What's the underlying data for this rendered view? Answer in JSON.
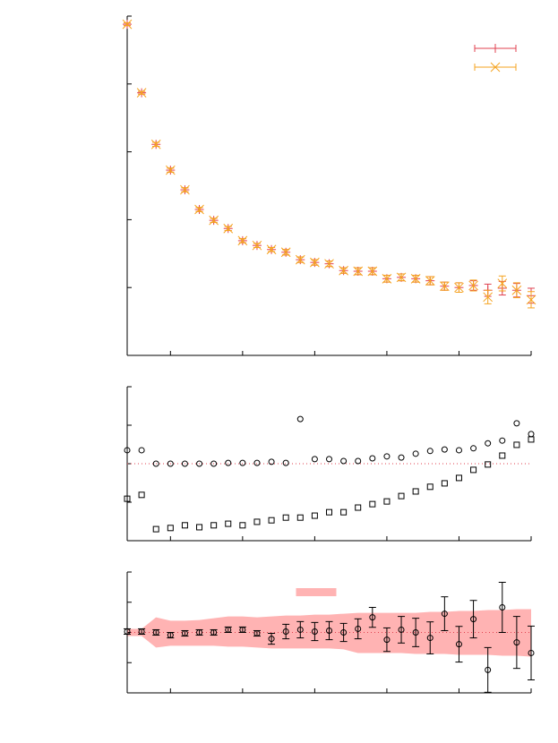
{
  "chart_data": [
    {
      "type": "errorbar",
      "x": [
        2,
        3,
        4,
        5,
        6,
        7,
        8,
        9,
        10,
        11,
        12,
        13,
        14,
        15,
        16,
        17,
        18,
        19,
        20,
        21,
        22,
        23,
        24,
        25,
        26,
        27,
        28,
        29,
        30
      ],
      "xlim": [
        2,
        30
      ],
      "xticks": [
        5,
        10,
        15,
        20,
        25,
        30
      ],
      "ylim": [
        0,
        5
      ],
      "yticks": [
        0,
        1,
        2,
        3,
        4,
        5
      ],
      "legend": "top-right",
      "series": [
        {
          "color": "#e0404f",
          "marker": "plus",
          "values": [
            4.88,
            3.87,
            3.11,
            2.73,
            2.44,
            2.15,
            1.99,
            1.87,
            1.69,
            1.62,
            1.56,
            1.52,
            1.41,
            1.37,
            1.35,
            1.25,
            1.24,
            1.24,
            1.13,
            1.15,
            1.13,
            1.1,
            1.02,
            1.0,
            1.03,
            0.96,
            0.99,
            0.96,
            0.88
          ],
          "errors": [
            0.02,
            0.02,
            0.03,
            0.03,
            0.03,
            0.03,
            0.03,
            0.03,
            0.03,
            0.03,
            0.03,
            0.04,
            0.04,
            0.04,
            0.04,
            0.04,
            0.05,
            0.05,
            0.05,
            0.05,
            0.05,
            0.06,
            0.06,
            0.07,
            0.07,
            0.09,
            0.1,
            0.1,
            0.11
          ]
        },
        {
          "color": "#f5a31f",
          "marker": "cross",
          "values": [
            4.88,
            3.87,
            3.11,
            2.73,
            2.44,
            2.15,
            1.99,
            1.87,
            1.69,
            1.62,
            1.56,
            1.52,
            1.41,
            1.37,
            1.35,
            1.25,
            1.24,
            1.24,
            1.13,
            1.15,
            1.13,
            1.1,
            1.02,
            1.0,
            1.03,
            0.86,
            1.06,
            0.96,
            0.82
          ],
          "errors": [
            0.02,
            0.02,
            0.03,
            0.03,
            0.03,
            0.03,
            0.03,
            0.03,
            0.03,
            0.03,
            0.03,
            0.04,
            0.04,
            0.04,
            0.04,
            0.04,
            0.05,
            0.05,
            0.05,
            0.05,
            0.05,
            0.06,
            0.06,
            0.07,
            0.08,
            0.1,
            0.11,
            0.11,
            0.12
          ]
        }
      ]
    },
    {
      "type": "scatter",
      "x": [
        2,
        3,
        4,
        5,
        6,
        7,
        8,
        9,
        10,
        11,
        12,
        13,
        14,
        15,
        16,
        17,
        18,
        19,
        20,
        21,
        22,
        23,
        24,
        25,
        26,
        27,
        28,
        29,
        30
      ],
      "xlim": [
        2,
        30
      ],
      "xticks": [
        5,
        10,
        15,
        20,
        25,
        30
      ],
      "ylim": [
        -2,
        2
      ],
      "yticks": [
        -2,
        -1,
        0,
        1,
        2
      ],
      "reference_line": 0,
      "reference_color": "#e0404f",
      "series": [
        {
          "color": "#000000",
          "marker": "circle",
          "values": [
            0.35,
            0.35,
            0,
            0,
            0,
            0,
            0,
            0.02,
            0.02,
            0.02,
            0.05,
            0.02,
            1.16,
            0.12,
            0.12,
            0.07,
            0.07,
            0.14,
            0.19,
            0.16,
            0.26,
            0.33,
            0.37,
            0.35,
            0.4,
            0.53,
            0.6,
            1.05,
            0.77
          ]
        },
        {
          "color": "#000000",
          "marker": "square",
          "values": [
            -0.91,
            -0.81,
            -1.7,
            -1.67,
            -1.6,
            -1.65,
            -1.6,
            -1.56,
            -1.6,
            -1.51,
            -1.47,
            -1.4,
            -1.4,
            -1.35,
            -1.26,
            -1.26,
            -1.14,
            -1.05,
            -0.98,
            -0.84,
            -0.72,
            -0.6,
            -0.51,
            -0.37,
            -0.16,
            -0.02,
            0.21,
            0.49,
            0.63
          ]
        }
      ]
    },
    {
      "type": "errorbar",
      "x": [
        2,
        3,
        4,
        5,
        6,
        7,
        8,
        9,
        10,
        11,
        12,
        13,
        14,
        15,
        16,
        17,
        18,
        19,
        20,
        21,
        22,
        23,
        24,
        25,
        26,
        27,
        28,
        29,
        30
      ],
      "xlim": [
        2,
        30
      ],
      "xticks": [
        5,
        10,
        15,
        20,
        25,
        30
      ],
      "ylim": [
        -2,
        2
      ],
      "yticks": [
        -2,
        -1,
        0,
        1,
        2
      ],
      "reference_line": 0,
      "reference_color": "#e0404f",
      "legend": "top-center",
      "band": {
        "color": "#ffb3b3",
        "upper": [
          0.12,
          0.12,
          0.5,
          0.39,
          0.39,
          0.41,
          0.47,
          0.53,
          0.53,
          0.5,
          0.53,
          0.56,
          0.56,
          0.59,
          0.59,
          0.62,
          0.65,
          0.65,
          0.65,
          0.65,
          0.65,
          0.68,
          0.68,
          0.71,
          0.71,
          0.74,
          0.74,
          0.77,
          0.77
        ],
        "lower": [
          -0.12,
          -0.12,
          -0.5,
          -0.44,
          -0.44,
          -0.44,
          -0.44,
          -0.47,
          -0.47,
          -0.5,
          -0.53,
          -0.53,
          -0.53,
          -0.53,
          -0.53,
          -0.56,
          -0.68,
          -0.68,
          -0.68,
          -0.68,
          -0.71,
          -0.71,
          -0.71,
          -0.74,
          -0.74,
          -0.74,
          -0.77,
          -0.77,
          -0.8
        ]
      },
      "series": [
        {
          "color": "#000000",
          "marker": "circle",
          "values": [
            0.03,
            0.03,
            0,
            -0.09,
            -0.03,
            0,
            0,
            0.09,
            0.09,
            -0.03,
            -0.21,
            0.03,
            0.09,
            0.03,
            0.06,
            0,
            0.12,
            0.5,
            -0.24,
            0.09,
            0,
            -0.18,
            0.62,
            -0.39,
            0.44,
            -1.24,
            0.83,
            -0.33,
            -0.68
          ],
          "errors": [
            0.09,
            0.09,
            0.09,
            0.09,
            0.09,
            0.09,
            0.09,
            0.09,
            0.09,
            0.09,
            0.18,
            0.24,
            0.27,
            0.3,
            0.3,
            0.3,
            0.33,
            0.33,
            0.39,
            0.44,
            0.47,
            0.53,
            0.56,
            0.59,
            0.62,
            0.74,
            0.83,
            0.86,
            0.89
          ]
        }
      ]
    }
  ]
}
